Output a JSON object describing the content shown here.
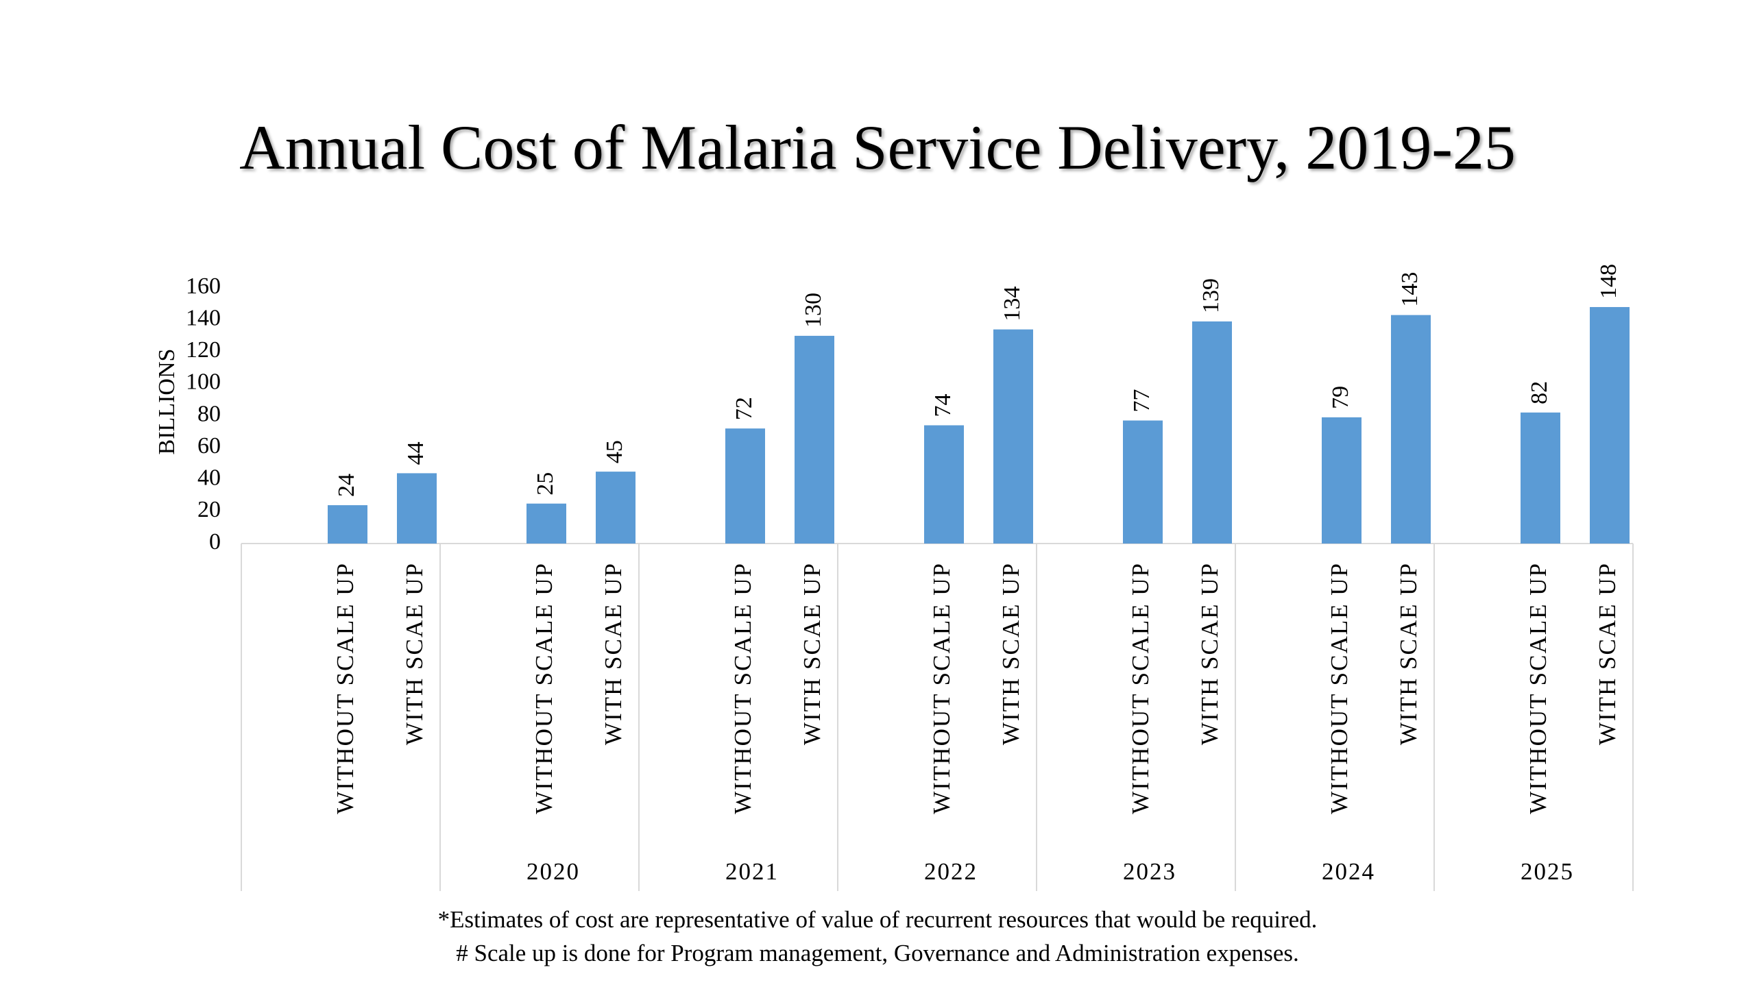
{
  "chart_data": {
    "type": "bar",
    "title": "Annual Cost of Malaria Service Delivery, 2019-25",
    "ylabel": "BILLIONS",
    "xlabel": "",
    "ylim": [
      0,
      160
    ],
    "yticks": [
      0,
      20,
      40,
      60,
      80,
      100,
      120,
      140,
      160
    ],
    "bar_color": "#5b9bd5",
    "grid": false,
    "groups": [
      {
        "label": "",
        "bars": [
          {
            "category": "WITHOUT SCALE UP",
            "value": 24
          },
          {
            "category": "WITH SCAE UP",
            "value": 44
          }
        ]
      },
      {
        "label": "2020",
        "bars": [
          {
            "category": "WITHOUT SCALE UP",
            "value": 25
          },
          {
            "category": "WITH SCAE UP",
            "value": 45
          }
        ]
      },
      {
        "label": "2021",
        "bars": [
          {
            "category": "WITHOUT SCALE UP",
            "value": 72
          },
          {
            "category": "WITH SCAE UP",
            "value": 130
          }
        ]
      },
      {
        "label": "2022",
        "bars": [
          {
            "category": "WITHOUT SCALE UP",
            "value": 74
          },
          {
            "category": "WITH SCAE UP",
            "value": 134
          }
        ]
      },
      {
        "label": "2023",
        "bars": [
          {
            "category": "WITHOUT SCALE UP",
            "value": 77
          },
          {
            "category": "WITH SCAE UP",
            "value": 139
          }
        ]
      },
      {
        "label": "2024",
        "bars": [
          {
            "category": "WITHOUT SCALE UP",
            "value": 79
          },
          {
            "category": "WITH SCAE UP",
            "value": 143
          }
        ]
      },
      {
        "label": "2025",
        "bars": [
          {
            "category": "WITHOUT SCALE UP",
            "value": 82
          },
          {
            "category": "WITH SCAE UP",
            "value": 148
          }
        ]
      }
    ]
  },
  "footnotes": {
    "line1": "*Estimates of cost are representative of value of recurrent resources that would be required.",
    "line2": "# Scale up is done for Program management, Governance and Administration expenses."
  }
}
